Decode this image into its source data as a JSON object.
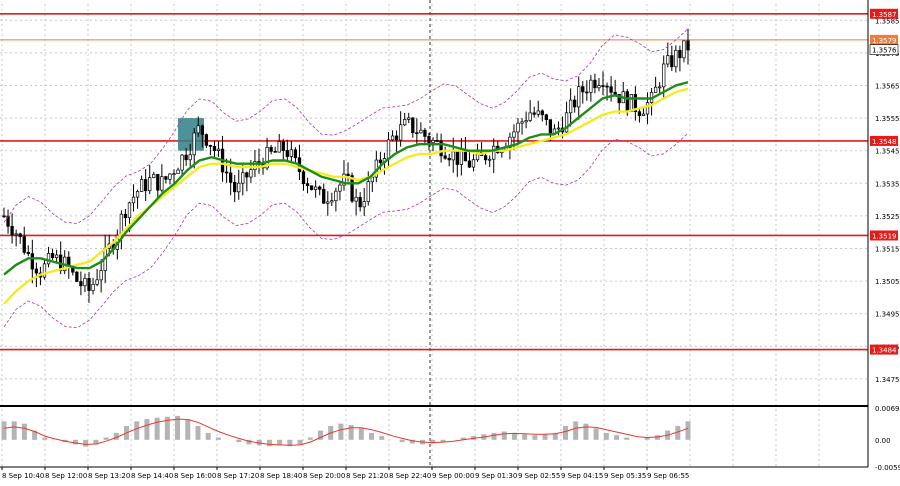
{
  "chart_data": [
    {
      "type": "candlestick",
      "title": "",
      "xlabel": "",
      "ylabel": "",
      "ylim": [
        1.3467,
        1.359
      ],
      "y_tick_labels": [
        "1.3585",
        "1.3575",
        "1.3565",
        "1.3555",
        "1.3545",
        "1.3535",
        "1.3525",
        "1.3515",
        "1.3505",
        "1.3495",
        "1.3485",
        "1.3475"
      ],
      "x_tick_labels": [
        "8 Sep 10:40",
        "8 Sep 12:00",
        "8 Sep 13:20",
        "8 Sep 14:40",
        "8 Sep 16:00",
        "8 Sep 17:20",
        "8 Sep 18:40",
        "8 Sep 20:00",
        "8 Sep 21:20",
        "8 Sep 22:40",
        "9 Sep 00:00",
        "9 Sep 01:30",
        "9 Sep 02:55",
        "9 Sep 04:15",
        "9 Sep 05:35",
        "9 Sep 06:55"
      ],
      "current_price": "1.3576",
      "levels": [
        {
          "value": 1.3587,
          "label": "1.3587",
          "color": "#e31b1b"
        },
        {
          "value": 1.3579,
          "label": "1.3579",
          "color": "#f07c3c"
        },
        {
          "value": 1.3548,
          "label": "1.3548",
          "color": "#e31b1b"
        },
        {
          "value": 1.3519,
          "label": "1.3519",
          "color": "#e31b1b"
        },
        {
          "value": 1.3484,
          "label": "1.3484",
          "color": "#e31b1b"
        }
      ],
      "highlight_zone": {
        "x_label": "8 Sep 16:00",
        "low": 1.3545,
        "high": 1.3555,
        "color": "#2e7f86"
      },
      "price_path": [
        1.3525,
        1.352,
        1.3513,
        1.3508,
        1.3512,
        1.351,
        1.3505,
        1.3502,
        1.351,
        1.3518,
        1.3528,
        1.3533,
        1.3536,
        1.3535,
        1.354,
        1.3545,
        1.3552,
        1.3547,
        1.354,
        1.3532,
        1.3538,
        1.3542,
        1.3544,
        1.3546,
        1.354,
        1.3535,
        1.353,
        1.3533,
        1.3536,
        1.3528,
        1.3535,
        1.3544,
        1.355,
        1.3553,
        1.3551,
        1.3548,
        1.3546,
        1.3543,
        1.3541,
        1.3542,
        1.3546,
        1.3548,
        1.3552,
        1.3557,
        1.3555,
        1.355,
        1.3555,
        1.3562,
        1.3566,
        1.3568,
        1.3563,
        1.356,
        1.3558,
        1.356,
        1.357,
        1.3574,
        1.3577
      ],
      "series": [
        {
          "type": "line",
          "color": "#f2ec25",
          "values": [
            1.3498,
            1.3502,
            1.3505,
            1.3507,
            1.3508,
            1.3509,
            1.351,
            1.3511,
            1.3514,
            1.3517,
            1.3521,
            1.3525,
            1.3528,
            1.3531,
            1.3534,
            1.3537,
            1.354,
            1.3541,
            1.3541,
            1.354,
            1.354,
            1.354,
            1.3541,
            1.3541,
            1.354,
            1.3539,
            1.3538,
            1.3537,
            1.3537,
            1.3536,
            1.3537,
            1.3539,
            1.3541,
            1.3543,
            1.3544,
            1.3544,
            1.3545,
            1.3545,
            1.3545,
            1.3544,
            1.3545,
            1.3545,
            1.3546,
            1.3547,
            1.3548,
            1.3549,
            1.355,
            1.3552,
            1.3554,
            1.3556,
            1.3557,
            1.3557,
            1.3558,
            1.3559,
            1.3561,
            1.3563,
            1.3564
          ]
        },
        {
          "type": "line",
          "color": "#1e8c19",
          "values": [
            1.3507,
            1.351,
            1.3512,
            1.3512,
            1.3511,
            1.351,
            1.3509,
            1.3509,
            1.3511,
            1.3515,
            1.352,
            1.3524,
            1.3528,
            1.3532,
            1.3535,
            1.3539,
            1.3542,
            1.3543,
            1.3542,
            1.3541,
            1.3541,
            1.3541,
            1.3542,
            1.3542,
            1.3541,
            1.3539,
            1.3537,
            1.3536,
            1.3535,
            1.3535,
            1.3537,
            1.3541,
            1.3544,
            1.3546,
            1.3547,
            1.3547,
            1.3547,
            1.3546,
            1.3545,
            1.3545,
            1.3545,
            1.3546,
            1.3547,
            1.3549,
            1.355,
            1.355,
            1.3552,
            1.3555,
            1.3558,
            1.3561,
            1.3562,
            1.3561,
            1.3561,
            1.3561,
            1.3563,
            1.3565,
            1.3566
          ]
        }
      ]
    },
    {
      "type": "histogram",
      "title": "",
      "ylim": [
        -0.0059,
        0.0069
      ],
      "y_tick_labels": [
        "0.0069",
        "0.00",
        "-0.0059"
      ],
      "signal_color": "#e33b2e",
      "bar_color": "#b4b4b4",
      "values": [
        0.004,
        0.004,
        0.0035,
        0.002,
        0.0005,
        0.0,
        -0.0005,
        -0.001,
        -0.0015,
        -0.001,
        0.0005,
        0.0015,
        0.003,
        0.004,
        0.0045,
        0.0048,
        0.005,
        0.0052,
        0.0045,
        0.003,
        0.0015,
        0.0005,
        0.0,
        -0.0005,
        -0.001,
        -0.0012,
        -0.0014,
        -0.0012,
        -0.0014,
        -0.001,
        0.0005,
        0.002,
        0.003,
        0.0035,
        0.0032,
        0.0025,
        0.0015,
        0.0008,
        0.0,
        -0.0005,
        -0.0008,
        -0.001,
        -0.0008,
        -0.0005,
        0.0,
        0.0005,
        0.0008,
        0.0012,
        0.0015,
        0.0018,
        0.0015,
        0.0012,
        0.001,
        0.0012,
        0.0015,
        0.003,
        0.004,
        0.0035,
        0.0025,
        0.0015,
        0.001,
        0.0005,
        0.0,
        0.0005,
        0.001,
        0.002,
        0.003,
        0.004
      ],
      "signal": [
        0.0025,
        0.0028,
        0.0025,
        0.0018,
        0.0008,
        0.0002,
        -0.0003,
        -0.0007,
        -0.001,
        -0.0009,
        -0.0003,
        0.0005,
        0.0015,
        0.0024,
        0.0032,
        0.0038,
        0.0042,
        0.0045,
        0.0044,
        0.0038,
        0.0028,
        0.0018,
        0.001,
        0.0003,
        -0.0003,
        -0.0007,
        -0.001,
        -0.0011,
        -0.0012,
        -0.0011,
        -0.0005,
        0.0005,
        0.0015,
        0.0022,
        0.0026,
        0.0026,
        0.0022,
        0.0016,
        0.0009,
        0.0003,
        -0.0002,
        -0.0005,
        -0.0006,
        -0.0005,
        -0.0003,
        0.0,
        0.0003,
        0.0006,
        0.001,
        0.0013,
        0.0014,
        0.0013,
        0.0012,
        0.0012,
        0.0013,
        0.0018,
        0.0025,
        0.0028,
        0.0027,
        0.0022,
        0.0017,
        0.0012,
        0.0007,
        0.0005,
        0.0006,
        0.001,
        0.0017,
        0.0025
      ]
    }
  ]
}
